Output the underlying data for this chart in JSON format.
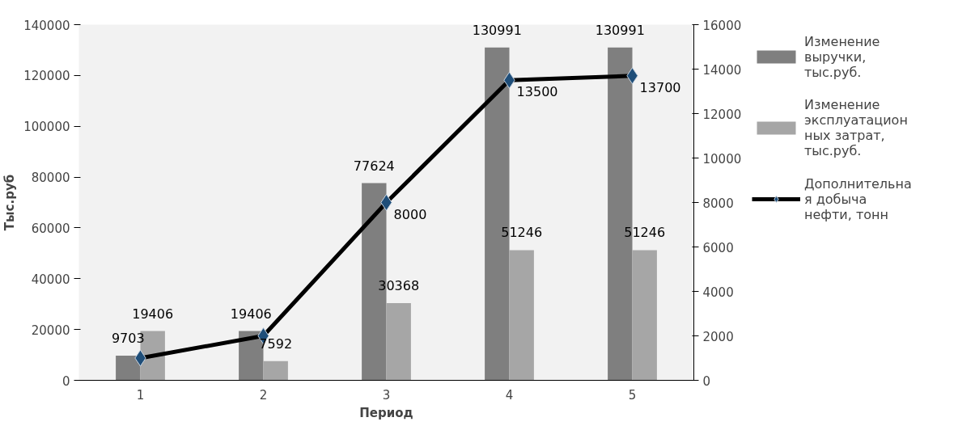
{
  "chart_data": {
    "type": "bar",
    "xlabel": "Период",
    "ylabel": "Тыс.руб",
    "categories": [
      "1",
      "2",
      "3",
      "4",
      "5"
    ],
    "series": [
      {
        "name": "Изменение выручки, тыс.руб.",
        "color": "#7f7f7f",
        "values": [
          9703,
          19406,
          77624,
          130991,
          130991
        ],
        "value_labels": [
          "9703",
          "19406",
          "77624",
          "130991",
          "130991"
        ]
      },
      {
        "name": "Изменение эксплуатационных затрат, тыс.руб.",
        "color": "#a6a6a6",
        "values": [
          19406,
          7592,
          30368,
          51246,
          51246
        ],
        "value_labels": [
          "19406",
          "7592",
          "30368",
          "51246",
          "51246"
        ]
      },
      {
        "name": "Дополнительная добыча нефти, тонн",
        "type": "line",
        "axis": "y2",
        "color": "#000000",
        "marker": "diamond",
        "values": [
          1000,
          2000,
          8000,
          13500,
          13700
        ],
        "value_labels": [
          null,
          null,
          "8000",
          "13500",
          "13700"
        ]
      }
    ],
    "ylim": [
      0,
      140000
    ],
    "yticks": [
      0,
      20000,
      40000,
      60000,
      80000,
      100000,
      120000,
      140000
    ],
    "y2lim": [
      0,
      16000
    ],
    "y2ticks": [
      0,
      2000,
      4000,
      6000,
      8000,
      10000,
      12000,
      14000,
      16000
    ],
    "grid": false,
    "legend": "right"
  }
}
